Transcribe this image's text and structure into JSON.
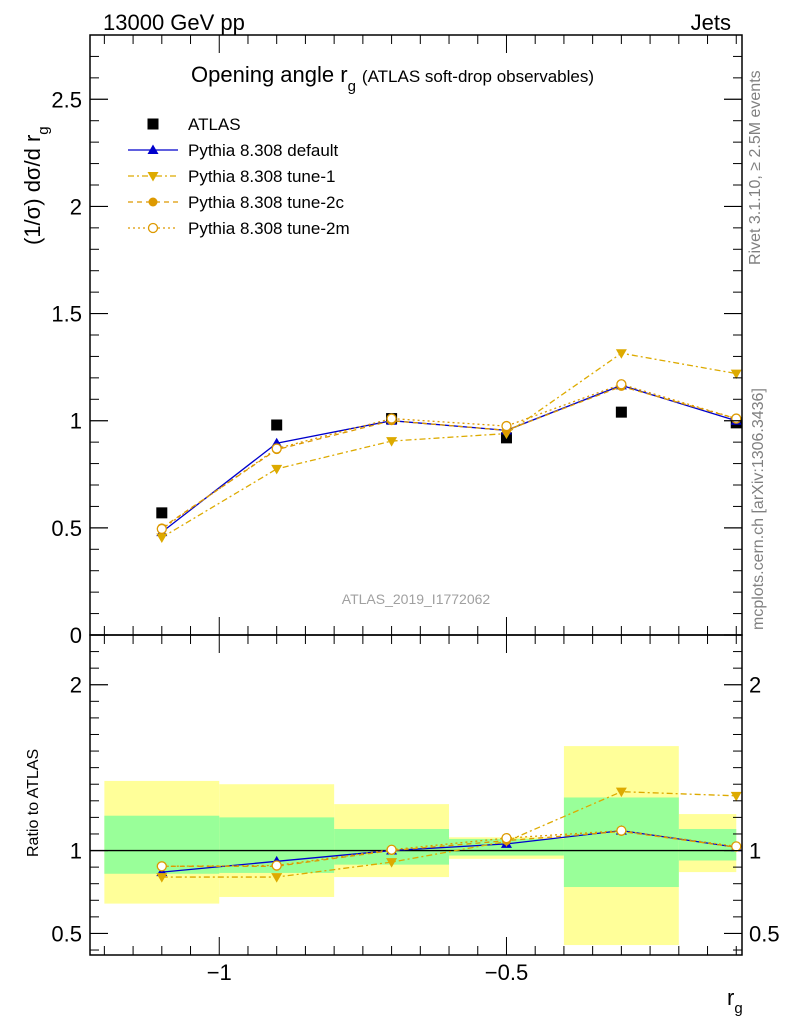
{
  "header": {
    "left": "13000 GeV pp",
    "right": "Jets"
  },
  "side_labels": {
    "rivet": "Rivet 3.1.10, ≥ 2.5M events",
    "mcplots": "mcplots.cern.ch [arXiv:1306.3436]"
  },
  "chart_data": [
    {
      "type": "line",
      "title": "Opening angle r",
      "title_sub": "g",
      "subtitle": "(ATLAS soft-drop observables)",
      "ylabel": "(1/σ) dσ/d r",
      "ylabel_sub": "g",
      "analysis_label": "ATLAS_2019_I1772062",
      "xlim": [
        -1.225,
        -0.09
      ],
      "ylim": [
        0,
        2.8
      ],
      "yticks": [
        {
          "v": 0,
          "label": "0"
        },
        {
          "v": 0.5,
          "label": "0.5"
        },
        {
          "v": 1,
          "label": "1"
        },
        {
          "v": 1.5,
          "label": "1.5"
        },
        {
          "v": 2,
          "label": "2"
        },
        {
          "v": 2.5,
          "label": "2.5"
        }
      ],
      "x": [
        -1.1,
        -0.9,
        -0.7,
        -0.5,
        -0.3,
        -0.1
      ],
      "bin_edges": [
        -1.2,
        -1.0,
        -0.8,
        -0.6,
        -0.4,
        -0.2,
        -0.1
      ],
      "series": [
        {
          "name": "ATLAS",
          "color": "#000000",
          "values": [
            0.57,
            0.98,
            1.01,
            0.92,
            1.04,
            0.99
          ]
        },
        {
          "name": "Pythia 8.308 default",
          "color": "#0000cc",
          "values": [
            0.48,
            0.895,
            1.0,
            0.955,
            1.165,
            1.0
          ]
        },
        {
          "name": "Pythia 8.308 tune-1",
          "color": "#ddaa00",
          "values": [
            0.455,
            0.775,
            0.905,
            0.94,
            1.315,
            1.22
          ]
        },
        {
          "name": "Pythia 8.308 tune-2c",
          "color": "#dd9900",
          "values": [
            0.5,
            0.865,
            1.0,
            0.955,
            1.16,
            1.01
          ]
        },
        {
          "name": "Pythia 8.308 tune-2m",
          "color": "#dd9900",
          "values": [
            0.495,
            0.87,
            1.01,
            0.975,
            1.17,
            1.01
          ]
        }
      ]
    },
    {
      "type": "line",
      "ylabel": "Ratio to ATLAS",
      "xlabel": "r",
      "xlabel_sub": "g",
      "xlim": [
        -1.225,
        -0.09
      ],
      "ylim": [
        0.37,
        2.3
      ],
      "xticks": [
        {
          "v": -1,
          "label": "−1"
        },
        {
          "v": -0.5,
          "label": "−0.5"
        }
      ],
      "yticks": [
        {
          "v": 0.5,
          "label": "0.5"
        },
        {
          "v": 1,
          "label": "1"
        },
        {
          "v": 2,
          "label": "2"
        }
      ],
      "x": [
        -1.1,
        -0.9,
        -0.7,
        -0.5,
        -0.3,
        -0.1
      ],
      "bin_edges": [
        -1.2,
        -1.0,
        -0.8,
        -0.6,
        -0.4,
        -0.2,
        -0.1
      ],
      "bands": {
        "green": {
          "color": "#99ff99",
          "lo": [
            0.86,
            0.865,
            0.915,
            0.97,
            0.78,
            0.94
          ],
          "hi": [
            1.21,
            1.2,
            1.13,
            1.07,
            1.32,
            1.13
          ]
        },
        "yellow": {
          "color": "#ffff99",
          "lo": [
            0.68,
            0.72,
            0.84,
            0.95,
            0.43,
            0.87
          ],
          "hi": [
            1.42,
            1.4,
            1.28,
            1.08,
            1.63,
            1.22
          ]
        }
      },
      "series": [
        {
          "name": "Pythia 8.308 default",
          "values": [
            0.87,
            0.935,
            1.0,
            1.04,
            1.12,
            1.02
          ]
        },
        {
          "name": "Pythia 8.308 tune-1",
          "values": [
            0.84,
            0.84,
            0.93,
            1.055,
            1.355,
            1.33
          ]
        },
        {
          "name": "Pythia 8.308 tune-2c",
          "values": [
            0.905,
            0.905,
            1.0,
            1.06,
            1.115,
            1.02
          ]
        },
        {
          "name": "Pythia 8.308 tune-2m",
          "values": [
            0.905,
            0.91,
            1.005,
            1.075,
            1.12,
            1.025
          ]
        }
      ]
    }
  ]
}
